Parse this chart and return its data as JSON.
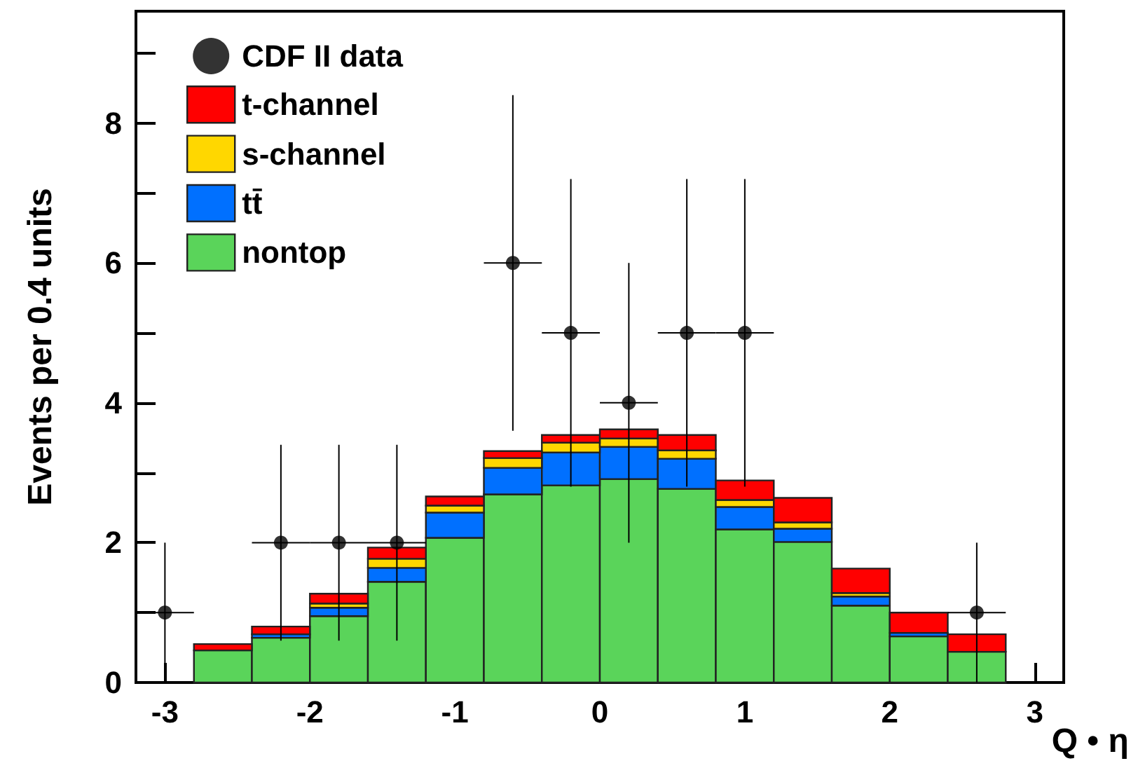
{
  "chart_data": {
    "type": "bar",
    "stacked": true,
    "xlabel": "Q • η",
    "ylabel": "Events per 0.4 units",
    "x": [
      -2.6,
      -2.2,
      -1.8,
      -1.4,
      -1.0,
      -0.6,
      -0.2,
      0.2,
      0.6,
      1.0,
      1.4,
      1.8,
      2.2,
      2.6
    ],
    "series": [
      {
        "name": "nontop",
        "color": "#5ad45a",
        "values": [
          0.46,
          0.64,
          0.95,
          1.44,
          2.07,
          2.69,
          2.82,
          2.91,
          2.77,
          2.19,
          2.01,
          1.1,
          0.66,
          0.44
        ]
      },
      {
        "name": "tt̄",
        "color": "#0070ff",
        "values": [
          0,
          0.05,
          0.12,
          0.2,
          0.36,
          0.38,
          0.47,
          0.46,
          0.43,
          0.32,
          0.19,
          0.13,
          0.05,
          0
        ]
      },
      {
        "name": "s-channel",
        "color": "#ffd700",
        "values": [
          0,
          null,
          0.06,
          0.13,
          0.1,
          0.14,
          0.14,
          0.12,
          0.12,
          0.1,
          0.09,
          0.05,
          null,
          0
        ]
      },
      {
        "name": "t-channel",
        "color": "#ff0000",
        "values": [
          0.09,
          0.11,
          0.14,
          0.16,
          0.13,
          0.1,
          0.11,
          0.13,
          0.22,
          0.28,
          0.35,
          0.35,
          0.29,
          0.25
        ]
      },
      {
        "name": "CDF II data",
        "type": "scatter",
        "color": "#000000",
        "x": [
          -3.0,
          -2.2,
          -1.8,
          -1.4,
          -0.6,
          -0.2,
          0.2,
          0.6,
          1.0,
          2.6
        ],
        "values": [
          1,
          2,
          2,
          2,
          6,
          5,
          4,
          5,
          5,
          1
        ],
        "errors": [
          1,
          1.4,
          1.4,
          1.4,
          2.4,
          2.2,
          2,
          2.2,
          2.2,
          1
        ],
        "xerrors": [
          0.2,
          0.2,
          0.2,
          0.2,
          0.2,
          0.2,
          0.2,
          0.2,
          0.2,
          0.2
        ]
      }
    ],
    "xlim": [
      -3.2,
      3.2
    ],
    "xticks": [
      -3,
      -2,
      -1,
      0,
      1,
      2,
      3
    ],
    "ylim": [
      0,
      9.6
    ],
    "yticks": [
      0,
      {
        "value": 1,
        "label": null
      },
      2,
      {
        "value": 3,
        "label": null
      },
      4,
      {
        "value": 5,
        "label": null
      },
      6,
      {
        "value": 7,
        "label": null
      },
      8,
      {
        "value": 9,
        "label": null
      }
    ],
    "grid": false,
    "legend": "top left",
    "marker": "circle"
  }
}
